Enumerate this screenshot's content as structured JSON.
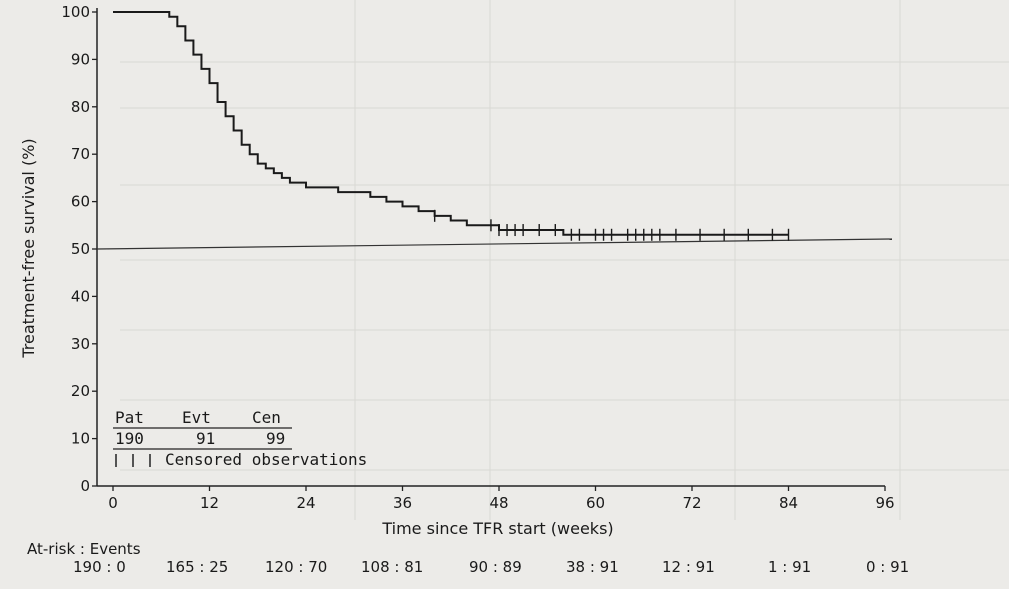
{
  "chart_data": {
    "type": "line",
    "title": "",
    "xlabel": "Time since TFR start (weeks)",
    "ylabel": "Treatment-free survival (%)",
    "xlim": [
      0,
      96
    ],
    "ylim": [
      0,
      100
    ],
    "x_ticks": [
      "0",
      "12",
      "24",
      "36",
      "48",
      "60",
      "72",
      "84",
      "96"
    ],
    "y_ticks": [
      "0",
      "10",
      "20",
      "30",
      "40",
      "50",
      "60",
      "70",
      "80",
      "90",
      "100"
    ],
    "reference_line": {
      "y": 50
    },
    "grid": false,
    "series": [
      {
        "x": [
          0,
          6,
          7,
          8,
          9,
          10,
          11,
          12,
          13,
          14,
          15,
          16,
          17,
          18,
          19,
          20,
          21,
          22,
          23,
          24,
          26,
          28,
          30,
          32,
          34,
          36,
          38,
          40,
          42,
          44,
          46,
          48,
          52,
          56,
          60,
          64,
          68,
          72,
          76,
          80,
          84
        ],
        "y": [
          100,
          100,
          99,
          97,
          94,
          91,
          88,
          85,
          81,
          78,
          75,
          72,
          70,
          68,
          67,
          66,
          65,
          64,
          64,
          63,
          63,
          62,
          62,
          61,
          60,
          59,
          58,
          57,
          56,
          55,
          55,
          54,
          54,
          53,
          53,
          53,
          53,
          53,
          53,
          53,
          53
        ],
        "censored_x": [
          40,
          47,
          48,
          49,
          50,
          51,
          53,
          55,
          57,
          58,
          60,
          61,
          62,
          64,
          65,
          66,
          67,
          68,
          70,
          73,
          76,
          79,
          82,
          84
        ]
      }
    ],
    "summary": {
      "headers": {
        "pat": "Pat",
        "evt": "Evt",
        "cen": "Cen"
      },
      "values": {
        "pat": "190",
        "evt": "91",
        "cen": "99"
      },
      "legend": "Censored observations"
    },
    "at_risk": {
      "label": "At-risk : Events",
      "values": [
        "190 : 0",
        "165 : 25",
        "120 : 70",
        "108 : 81",
        "90 : 89",
        "38 : 91",
        "12 : 91",
        "1 : 91",
        "0 : 91"
      ]
    }
  }
}
